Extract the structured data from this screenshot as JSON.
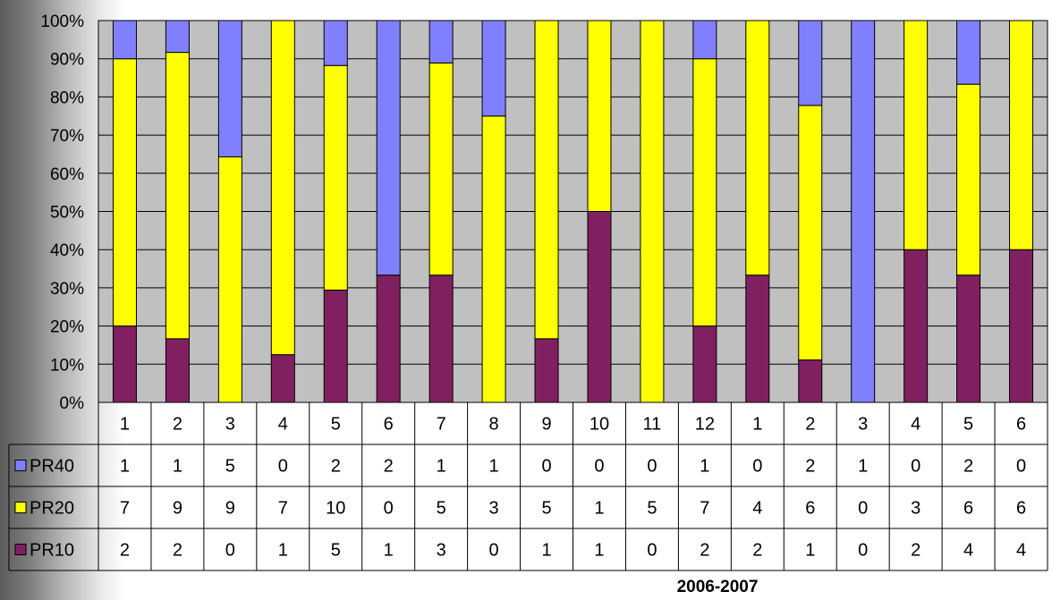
{
  "chart_data": {
    "type": "bar",
    "stacked": "percent",
    "categories": [
      "1",
      "2",
      "3",
      "4",
      "5",
      "6",
      "7",
      "8",
      "9",
      "10",
      "11",
      "12",
      "1",
      "2",
      "3",
      "4",
      "5",
      "6"
    ],
    "series": [
      {
        "name": "PR40",
        "color": "#8080ff",
        "values": [
          1,
          1,
          5,
          0,
          2,
          2,
          1,
          1,
          0,
          0,
          0,
          1,
          0,
          2,
          1,
          0,
          2,
          0
        ]
      },
      {
        "name": "PR20",
        "color": "#ffff00",
        "values": [
          7,
          9,
          9,
          7,
          10,
          0,
          5,
          3,
          5,
          1,
          5,
          7,
          4,
          6,
          0,
          3,
          6,
          6
        ]
      },
      {
        "name": "PR10",
        "color": "#802060",
        "values": [
          2,
          2,
          0,
          1,
          5,
          1,
          3,
          0,
          1,
          1,
          0,
          2,
          2,
          1,
          0,
          2,
          4,
          4
        ]
      }
    ],
    "stack_order_bottom_to_top": [
      "PR10",
      "PR20",
      "PR40"
    ],
    "ylim": [
      0,
      100
    ],
    "y_ticks": [
      "0%",
      "10%",
      "20%",
      "30%",
      "40%",
      "50%",
      "60%",
      "70%",
      "80%",
      "90%",
      "100%"
    ],
    "xlabel": "2006-2007",
    "plot_background": "#c0c0c0",
    "grid": true,
    "legend": "data-table-left"
  }
}
